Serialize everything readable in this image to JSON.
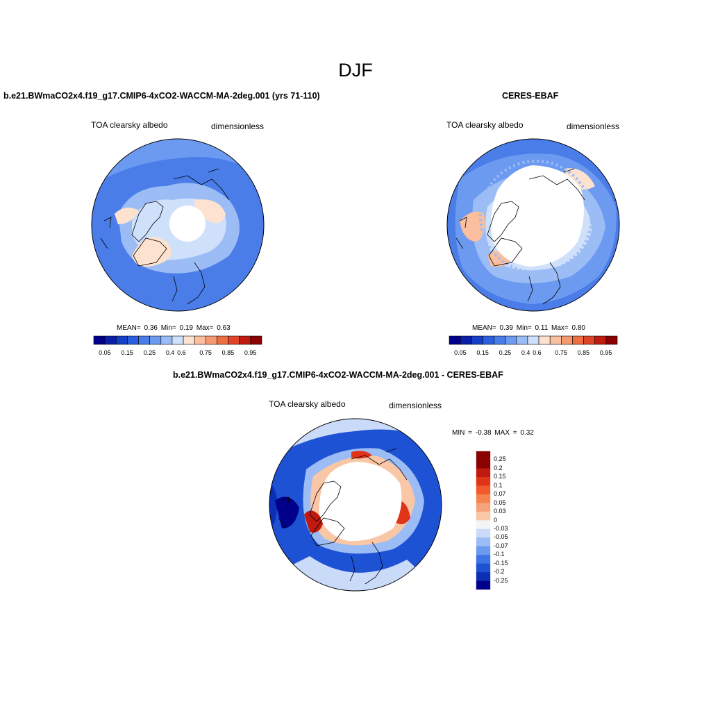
{
  "figure": {
    "title": "DJF"
  },
  "panels": [
    {
      "title": "b.e21.BWmaCO2x4.f19_g17.CMIP6-4xCO2-WACCM-MA-2deg.001 (yrs 71-110)",
      "variable": "TOA clearsky albedo",
      "units": "dimensionless",
      "stats": {
        "mean_label": "MEAN=",
        "mean": "0.36",
        "min_label": "Min=",
        "min": "0.19",
        "max_label": "Max=",
        "max": "0.63"
      },
      "colorbar": {
        "ticks": [
          "0.05",
          "0.15",
          "0.25",
          "0.4",
          "0.6",
          "0.75",
          "0.85",
          "0.95"
        ]
      }
    },
    {
      "title": "CERES-EBAF",
      "variable": "TOA clearsky albedo",
      "units": "dimensionless",
      "stats": {
        "mean_label": "MEAN=",
        "mean": "0.39",
        "min_label": "Min=",
        "min": "0.11",
        "max_label": "Max=",
        "max": "0.80"
      },
      "colorbar": {
        "ticks": [
          "0.05",
          "0.15",
          "0.25",
          "0.4",
          "0.6",
          "0.75",
          "0.85",
          "0.95"
        ]
      }
    },
    {
      "title": "b.e21.BWmaCO2x4.f19_g17.CMIP6-4xCO2-WACCM-MA-2deg.001 - CERES-EBAF",
      "variable": "TOA clearsky albedo",
      "units": "dimensionless",
      "stats": {
        "min_label": "MIN =",
        "min": "-0.38",
        "max_label": "MAX =",
        "max": "0.32"
      },
      "colorbar": {
        "ticks": [
          "0.25",
          "0.2",
          "0.15",
          "0.1",
          "0.07",
          "0.05",
          "0.03",
          "0",
          "-0.03",
          "-0.05",
          "-0.07",
          "-0.1",
          "-0.15",
          "-0.2",
          "-0.25"
        ]
      }
    }
  ],
  "colors": {
    "field_palette": [
      "#00008b",
      "#0a1fa8",
      "#1440c8",
      "#2a5fe0",
      "#4a7de8",
      "#6b9af0",
      "#9bbcf5",
      "#cfe0fb",
      "#fde2d0",
      "#f9bf9f",
      "#f59a70",
      "#ee6e44",
      "#e04428",
      "#c01a10",
      "#8b0000"
    ],
    "diff_palette": [
      "#8b0000",
      "#c01a10",
      "#e03318",
      "#f25a2e",
      "#f5834e",
      "#f7a37a",
      "#f9c6a6",
      "#f4f4f4",
      "#c9dbf8",
      "#9bbcf5",
      "#6b9af0",
      "#3f74e6",
      "#1e52d4",
      "#0c30b4",
      "#00008b"
    ],
    "missing": "#ffffff",
    "coastline": "#000000"
  },
  "chart_data": [
    {
      "type": "heatmap",
      "title": "b.e21.BWmaCO2x4.f19_g17.CMIP6-4xCO2-WACCM-MA-2deg.001 (yrs 71-110)",
      "projection": "north-polar stereographic",
      "season": "DJF",
      "contour_levels": [
        0.05,
        0.1,
        0.15,
        0.2,
        0.25,
        0.3,
        0.4,
        0.5,
        0.6,
        0.7,
        0.75,
        0.8,
        0.85,
        0.9,
        0.95
      ],
      "mean": 0.36,
      "min": 0.19,
      "max": 0.63
    },
    {
      "type": "heatmap",
      "title": "CERES-EBAF",
      "projection": "north-polar stereographic",
      "season": "DJF",
      "contour_levels": [
        0.05,
        0.1,
        0.15,
        0.2,
        0.25,
        0.3,
        0.4,
        0.5,
        0.6,
        0.7,
        0.75,
        0.8,
        0.85,
        0.9,
        0.95
      ],
      "mean": 0.39,
      "min": 0.11,
      "max": 0.8
    },
    {
      "type": "heatmap",
      "title": "b.e21.BWmaCO2x4.f19_g17.CMIP6-4xCO2-WACCM-MA-2deg.001 - CERES-EBAF",
      "projection": "north-polar stereographic",
      "season": "DJF",
      "contour_levels": [
        -0.25,
        -0.2,
        -0.15,
        -0.1,
        -0.07,
        -0.05,
        -0.03,
        0,
        0.03,
        0.05,
        0.07,
        0.1,
        0.15,
        0.2,
        0.25
      ],
      "min": -0.38,
      "max": 0.32
    }
  ]
}
